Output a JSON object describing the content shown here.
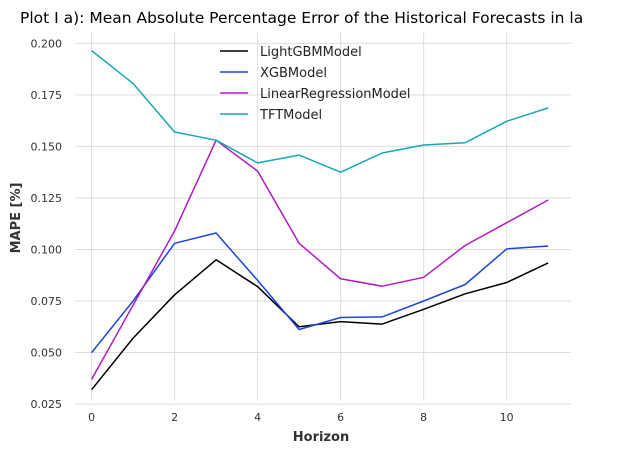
{
  "chart_data": {
    "type": "line",
    "title": "Plot I a): Mean Absolute Percentage Error of the Historical Forecasts in la",
    "xlabel": "Horizon",
    "ylabel": "MAPE [%]",
    "xlim": [
      -0.4,
      11.55
    ],
    "ylim": [
      0.0265,
      0.2055
    ],
    "xticks": [
      0,
      2,
      4,
      6,
      8,
      10
    ],
    "xtick_labels": [
      "0",
      "2",
      "4",
      "6",
      "8",
      "10"
    ],
    "yticks": [
      0.025,
      0.05,
      0.075,
      0.1,
      0.125,
      0.15,
      0.175,
      0.2
    ],
    "ytick_labels": [
      "0.025",
      "0.050",
      "0.075",
      "0.100",
      "0.125",
      "0.150",
      "0.175",
      "0.200"
    ],
    "grid": true,
    "legend": "top-center",
    "x": [
      0,
      1,
      2,
      3,
      4,
      5,
      6,
      7,
      8,
      9,
      10,
      11
    ],
    "series": [
      {
        "name": "LightGBMModel",
        "color": "#000000",
        "values": [
          0.032,
          0.057,
          0.078,
          0.095,
          0.082,
          0.0625,
          0.065,
          0.0638,
          0.071,
          0.0785,
          0.084,
          0.0935
        ]
      },
      {
        "name": "XGBModel",
        "color": "#1c46d9",
        "values": [
          0.05,
          0.075,
          0.103,
          0.108,
          0.085,
          0.0612,
          0.067,
          0.0673,
          0.075,
          0.083,
          0.1003,
          0.1017
        ]
      },
      {
        "name": "LinearRegressionModel",
        "color": "#b01cbf",
        "values": [
          0.037,
          0.073,
          0.109,
          0.153,
          0.138,
          0.103,
          0.0858,
          0.0822,
          0.0865,
          0.102,
          0.113,
          0.124
        ]
      },
      {
        "name": "TFTModel",
        "color": "#16a8b4",
        "values": [
          0.1965,
          0.1805,
          0.157,
          0.153,
          0.142,
          0.1458,
          0.1375,
          0.1468,
          0.1507,
          0.1518,
          0.1622,
          0.1687
        ]
      }
    ]
  }
}
